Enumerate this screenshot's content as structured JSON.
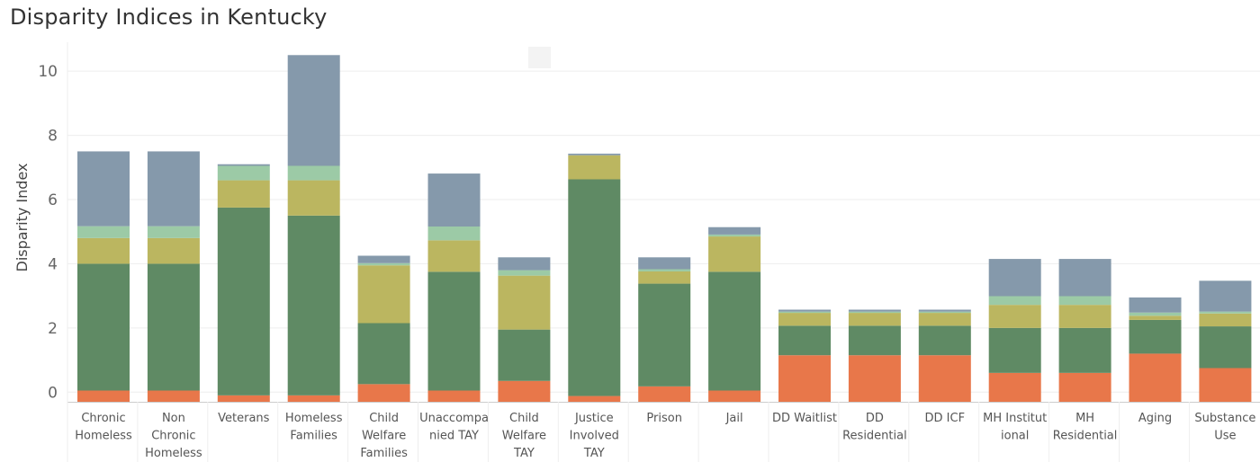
{
  "header": {
    "title": "Disparity Indices in Kentucky"
  },
  "colors": {
    "seg1": "#e8774a",
    "seg2": "#5f8a64",
    "seg3": "#bbb660",
    "seg4": "#9ccaa6",
    "seg5": "#8599ab",
    "grid": "#eeeeee",
    "axis": "#cccccc"
  },
  "chart_data": {
    "type": "bar",
    "stacked": true,
    "title": "Disparity Indices in Kentucky",
    "xlabel": "",
    "ylabel": "Disparity Index",
    "ylim": [
      -0.3,
      10.9
    ],
    "yticks": [
      0,
      2,
      4,
      6,
      8,
      10
    ],
    "grid": true,
    "categories": [
      [
        "Chronic",
        "Homeless"
      ],
      [
        "Non",
        "Chronic",
        "Homeless"
      ],
      [
        "Veterans"
      ],
      [
        "Homeless",
        "Families"
      ],
      [
        "Child",
        "Welfare",
        "Families"
      ],
      [
        "Unaccompa",
        "nied TAY"
      ],
      [
        "Child",
        "Welfare",
        "TAY"
      ],
      [
        "Justice",
        "Involved",
        "TAY"
      ],
      [
        "Prison"
      ],
      [
        "Jail"
      ],
      [
        "DD Waitlist"
      ],
      [
        "DD",
        "Residential"
      ],
      [
        "DD ICF"
      ],
      [
        "MH Institut",
        "ional"
      ],
      [
        "MH",
        "Residential"
      ],
      [
        "Aging"
      ],
      [
        "Substance",
        "Use"
      ]
    ],
    "baseline": -0.3,
    "series": [
      {
        "values": [
          0.35,
          0.35,
          0.2,
          0.2,
          0.55,
          0.35,
          0.65,
          0.18,
          0.48,
          0.35,
          1.45,
          1.45,
          1.45,
          0.9,
          0.9,
          1.5,
          1.05
        ]
      },
      {
        "values": [
          3.95,
          3.95,
          5.85,
          5.6,
          1.9,
          3.7,
          1.6,
          6.75,
          3.2,
          3.7,
          0.92,
          0.92,
          0.92,
          1.4,
          1.4,
          1.05,
          1.3
        ]
      },
      {
        "values": [
          0.8,
          0.8,
          0.85,
          1.1,
          1.8,
          0.98,
          1.68,
          0.75,
          0.38,
          1.1,
          0.4,
          0.4,
          0.4,
          0.72,
          0.72,
          0.13,
          0.4
        ]
      },
      {
        "values": [
          0.37,
          0.37,
          0.45,
          0.45,
          0.07,
          0.43,
          0.17,
          0.0,
          0.07,
          0.06,
          0.04,
          0.04,
          0.04,
          0.27,
          0.27,
          0.1,
          0.06
        ]
      },
      {
        "values": [
          2.33,
          2.33,
          0.05,
          3.45,
          0.23,
          1.65,
          0.4,
          0.05,
          0.37,
          0.23,
          0.06,
          0.06,
          0.06,
          1.16,
          1.16,
          0.47,
          0.96
        ]
      }
    ]
  }
}
